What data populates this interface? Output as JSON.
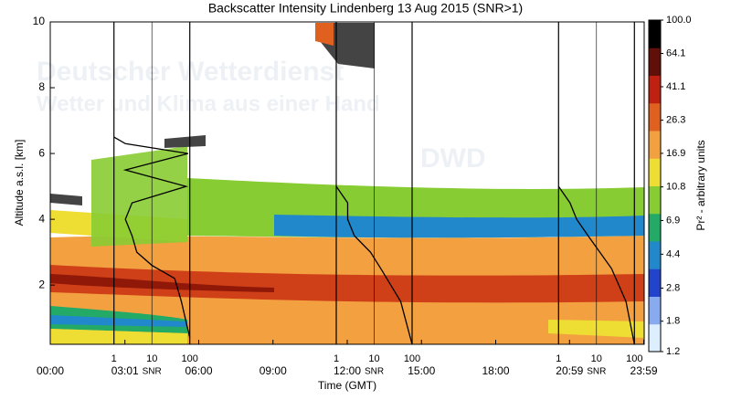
{
  "chart_data": {
    "type": "heatmap",
    "title": "Backscatter Intensity Lindenberg 13 Aug 2015 (SNR>1)",
    "xlabel": "Time (GMT)",
    "ylabel": "Altitude a.s.l. [km]",
    "xlim": [
      0,
      24
    ],
    "xticks": [
      {
        "value": 0,
        "label": "00:00"
      },
      {
        "value": 3.017,
        "label": "03:01"
      },
      {
        "value": 6,
        "label": "06:00"
      },
      {
        "value": 9,
        "label": "09:00"
      },
      {
        "value": 12,
        "label": "12:00"
      },
      {
        "value": 15,
        "label": "15:00"
      },
      {
        "value": 18,
        "label": "18:00"
      },
      {
        "value": 20.983,
        "label": "20:59"
      },
      {
        "value": 23.983,
        "label": "23:59"
      }
    ],
    "ylim": [
      0.2,
      10
    ],
    "yticks": [
      2,
      4,
      6,
      8,
      10
    ],
    "colorbar": {
      "label": "Pr² - arbitrary units",
      "scale": "log",
      "lim": [
        1.2,
        100
      ],
      "ticks": [
        {
          "value": 100,
          "label": "100.0"
        },
        64.1,
        41.1,
        26.3,
        16.9,
        10.8,
        6.9,
        4.4,
        2.8,
        1.8,
        1.2
      ],
      "colors": [
        "#ddeeff",
        "#88aaee",
        "#2244cc",
        "#2288cc",
        "#22aa66",
        "#88cc33",
        "#eedd33",
        "#f2a040",
        "#e06020",
        "#c02010",
        "#601008",
        "#000000"
      ]
    },
    "snr_profiles": [
      {
        "time": 3.017,
        "xlabel": "SNR",
        "xlim": [
          1,
          100
        ],
        "xticks": [
          1,
          10,
          100
        ],
        "altitude": [
          0.4,
          1.5,
          2.2,
          2.6,
          3.0,
          3.5,
          4.0,
          4.5,
          5.0,
          5.5,
          6.0,
          6.3,
          6.5
        ],
        "values": [
          100,
          60,
          40,
          10,
          4,
          3,
          2,
          3,
          80,
          2,
          90,
          2,
          1
        ]
      },
      {
        "time": 12,
        "xlabel": "SNR",
        "xlim": [
          1,
          100
        ],
        "xticks": [
          1,
          10,
          100
        ],
        "altitude": [
          0.2,
          1.5,
          2.5,
          3.0,
          3.5,
          4.0,
          4.5,
          5.0
        ],
        "values": [
          100,
          50,
          15,
          8,
          3,
          2,
          2,
          1
        ]
      },
      {
        "time": 20.983,
        "xlabel": "SNR",
        "xlim": [
          1,
          100
        ],
        "xticks": [
          1,
          10,
          100
        ],
        "altitude": [
          0.2,
          1.5,
          2.5,
          3.5,
          4.0,
          4.5,
          5.0
        ],
        "values": [
          100,
          60,
          25,
          6,
          3,
          2,
          1
        ]
      }
    ],
    "watermark": [
      "Deutscher Wetterdienst",
      "Wetter und Klima aus einer Hand",
      "DWD"
    ]
  }
}
